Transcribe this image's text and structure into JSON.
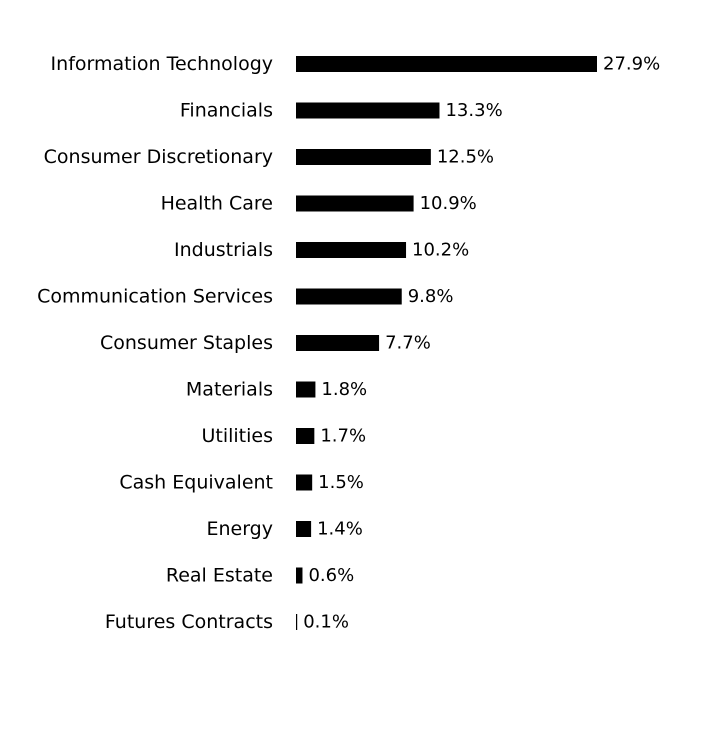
{
  "chart_data": {
    "type": "bar",
    "orientation": "horizontal",
    "categories": [
      "Information Technology",
      "Financials",
      "Consumer Discretionary",
      "Health Care",
      "Industrials",
      "Communication Services",
      "Consumer Staples",
      "Materials",
      "Utilities",
      "Cash Equivalent",
      "Energy",
      "Real Estate",
      "Futures Contracts"
    ],
    "values": [
      27.9,
      13.3,
      12.5,
      10.9,
      10.2,
      9.8,
      7.7,
      1.8,
      1.7,
      1.5,
      1.4,
      0.6,
      0.1
    ],
    "value_labels": [
      "27.9%",
      "13.3%",
      "12.5%",
      "10.9%",
      "10.2%",
      "9.8%",
      "7.7%",
      "1.8%",
      "1.7%",
      "1.5%",
      "1.4%",
      "0.6%",
      "0.1%"
    ],
    "unit": "%",
    "bar_color": "#000000",
    "grid": false,
    "legend": "none"
  }
}
